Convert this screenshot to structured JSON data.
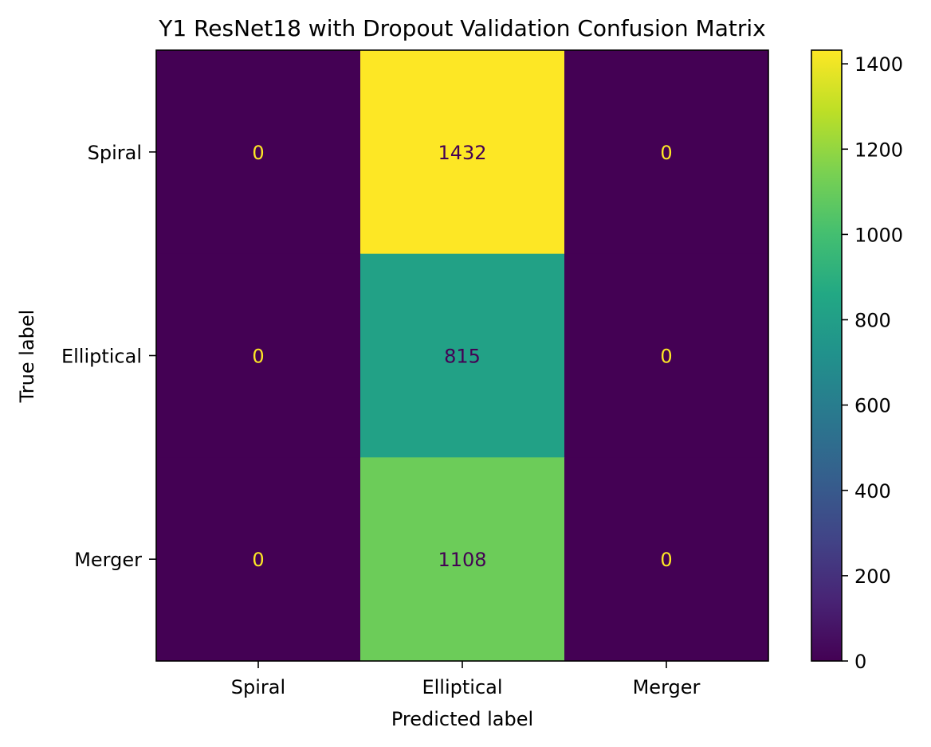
{
  "chart_data": {
    "type": "heatmap",
    "title": "Y1 ResNet18 with Dropout Validation Confusion Matrix",
    "xlabel": "Predicted label",
    "ylabel": "True label",
    "x_categories": [
      "Spiral",
      "Elliptical",
      "Merger"
    ],
    "y_categories": [
      "Spiral",
      "Elliptical",
      "Merger"
    ],
    "values": [
      [
        0,
        1432,
        0
      ],
      [
        0,
        815,
        0
      ],
      [
        0,
        1108,
        0
      ]
    ],
    "colormap": "viridis",
    "colorbar": {
      "range": [
        0,
        1432
      ],
      "ticks": [
        0,
        200,
        400,
        600,
        800,
        1000,
        1200,
        1400
      ]
    },
    "label_colors": {
      "light": "#fde725",
      "dark": "#440154"
    }
  }
}
